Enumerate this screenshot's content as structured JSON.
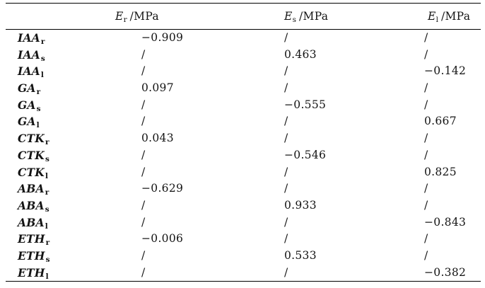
{
  "colors": {
    "text": "#141414",
    "rule": "#000000",
    "background": "#ffffff"
  },
  "table": {
    "headers": [
      {
        "symbol": "E",
        "sub": "r",
        "unit": "/MPa"
      },
      {
        "symbol": "E",
        "sub": "s",
        "unit": "/MPa"
      },
      {
        "symbol": "E",
        "sub": "l",
        "unit": "/MPa"
      }
    ],
    "rows": [
      {
        "label": "IAA",
        "sub": "r",
        "values": [
          "−0.909",
          "/",
          "/"
        ]
      },
      {
        "label": "IAA",
        "sub": "s",
        "values": [
          "/",
          "0.463",
          "/"
        ]
      },
      {
        "label": "IAA",
        "sub": "l",
        "values": [
          "/",
          "/",
          "−0.142"
        ]
      },
      {
        "label": "GA",
        "sub": "r",
        "values": [
          "0.097",
          "/",
          "/"
        ]
      },
      {
        "label": "GA",
        "sub": "s",
        "values": [
          "/",
          "−0.555",
          "/"
        ]
      },
      {
        "label": "GA",
        "sub": "l",
        "values": [
          "/",
          "/",
          "0.667"
        ]
      },
      {
        "label": "CTK",
        "sub": "r",
        "values": [
          "0.043",
          "/",
          "/"
        ]
      },
      {
        "label": "CTK",
        "sub": "s",
        "values": [
          "/",
          "−0.546",
          "/"
        ]
      },
      {
        "label": "CTK",
        "sub": "l",
        "values": [
          "/",
          "/",
          "0.825"
        ]
      },
      {
        "label": "ABA",
        "sub": "r",
        "values": [
          "−0.629",
          "/",
          "/"
        ]
      },
      {
        "label": "ABA",
        "sub": "s",
        "values": [
          "/",
          "0.933",
          "/"
        ]
      },
      {
        "label": "ABA",
        "sub": "l",
        "values": [
          "/",
          "/",
          "−0.843"
        ]
      },
      {
        "label": "ETH",
        "sub": "r",
        "values": [
          "−0.006",
          "/",
          "/"
        ]
      },
      {
        "label": "ETH",
        "sub": "s",
        "values": [
          "/",
          "0.533",
          "/"
        ]
      },
      {
        "label": "ETH",
        "sub": "l",
        "values": [
          "/",
          "/",
          "−0.382"
        ]
      }
    ]
  }
}
